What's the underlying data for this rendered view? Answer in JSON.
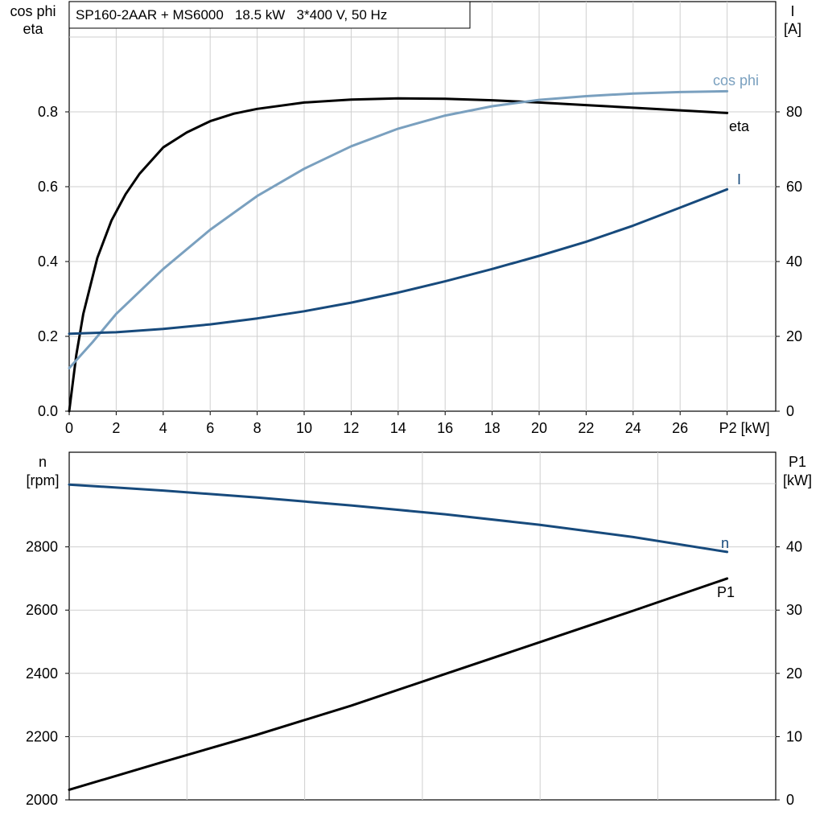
{
  "title": "SP160-2AAR + MS6000   18.5 kW   3*400 V, 50 Hz",
  "colors": {
    "eta": "#000000",
    "cos_phi": "#7aa0bf",
    "current": "#174a7c",
    "speed": "#174a7c",
    "p1": "#000000",
    "grid": "#cfcfcf"
  },
  "chart_data": [
    {
      "type": "line",
      "x_label": "P2 [kW]",
      "x_ticks": [
        "0",
        "2",
        "4",
        "6",
        "8",
        "10",
        "12",
        "14",
        "16",
        "18",
        "20",
        "22",
        "24",
        "26",
        "P2 [kW]"
      ],
      "y_left_label": [
        "cos phi",
        "eta"
      ],
      "y_left_ticks": [
        "0.0",
        "0.2",
        "0.4",
        "0.6",
        "0.8"
      ],
      "y_left_range": [
        0,
        1.0
      ],
      "y_right_label": [
        "I",
        "[A]"
      ],
      "y_right_ticks": [
        "0",
        "20",
        "40",
        "60",
        "80"
      ],
      "y_right_range": [
        0,
        100
      ],
      "x_range": [
        0,
        30
      ],
      "grid": true,
      "series": [
        {
          "name": "eta",
          "axis": "left",
          "x": [
            0,
            0.3,
            0.6,
            1.2,
            1.8,
            2.4,
            3,
            4,
            5,
            6,
            7,
            8,
            10,
            12,
            14,
            16,
            18,
            20,
            22,
            24,
            26,
            28
          ],
          "y": [
            0,
            0.15,
            0.26,
            0.41,
            0.51,
            0.58,
            0.635,
            0.705,
            0.745,
            0.775,
            0.795,
            0.808,
            0.825,
            0.833,
            0.836,
            0.835,
            0.831,
            0.825,
            0.818,
            0.811,
            0.804,
            0.797
          ]
        },
        {
          "name": "cos phi",
          "axis": "left",
          "x": [
            0,
            1,
            2,
            4,
            6,
            8,
            10,
            12,
            14,
            16,
            18,
            20,
            22,
            24,
            26,
            28
          ],
          "y": [
            0.115,
            0.185,
            0.26,
            0.38,
            0.485,
            0.575,
            0.648,
            0.708,
            0.755,
            0.79,
            0.815,
            0.832,
            0.842,
            0.849,
            0.853,
            0.855
          ]
        },
        {
          "name": "I",
          "axis": "right",
          "x": [
            0,
            2,
            4,
            6,
            8,
            10,
            12,
            14,
            16,
            18,
            20,
            22,
            24,
            26,
            28
          ],
          "y": [
            20.7,
            21.1,
            22.0,
            23.2,
            24.8,
            26.7,
            29.0,
            31.7,
            34.7,
            38.0,
            41.5,
            45.3,
            49.6,
            54.4,
            59.3
          ]
        }
      ]
    },
    {
      "type": "line",
      "y_left_label": [
        "n",
        "[rpm]"
      ],
      "y_left_ticks": [
        "2000",
        "2200",
        "2400",
        "2600",
        "2800"
      ],
      "y_left_range": [
        2000,
        3100
      ],
      "y_right_label": [
        "P1",
        "[kW]"
      ],
      "y_right_ticks": [
        "0",
        "10",
        "20",
        "30",
        "40"
      ],
      "y_right_range": [
        0,
        55
      ],
      "x_range": [
        0,
        30
      ],
      "grid": true,
      "series": [
        {
          "name": "n",
          "axis": "left",
          "x": [
            0,
            4,
            8,
            12,
            16,
            20,
            24,
            28
          ],
          "y": [
            2997,
            2978,
            2956,
            2931,
            2903,
            2870,
            2831,
            2784
          ]
        },
        {
          "name": "P1",
          "axis": "right",
          "x": [
            0,
            4,
            8,
            12,
            16,
            20,
            24,
            28
          ],
          "y": [
            1.6,
            6.0,
            10.3,
            14.9,
            19.9,
            24.9,
            29.9,
            35.0
          ]
        }
      ]
    }
  ]
}
